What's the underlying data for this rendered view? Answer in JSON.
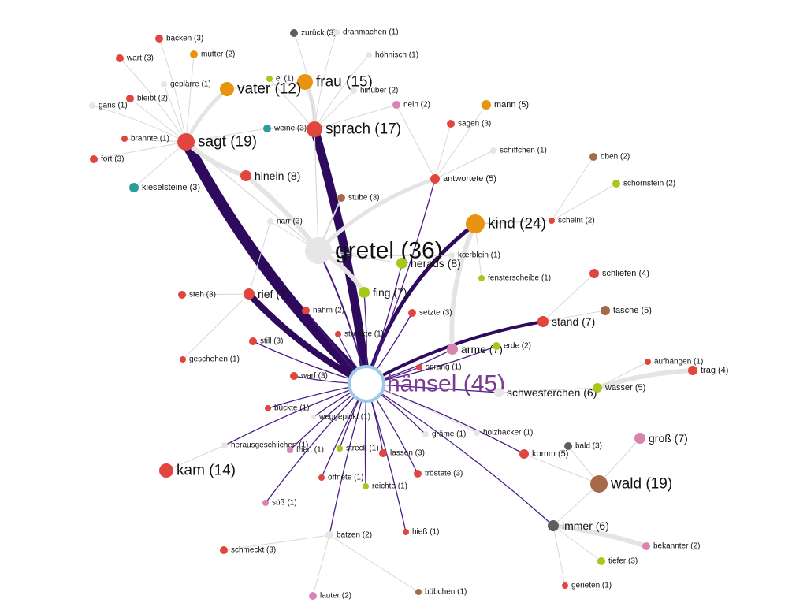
{
  "graph": {
    "width": 1024,
    "height": 779,
    "colors": {
      "red": "#e0463e",
      "orange": "#e89410",
      "lime": "#a6c81a",
      "teal": "#2c9c9c",
      "brown": "#a8684a",
      "darkgray": "#5e5e5e",
      "pink": "#d784b2",
      "lightgray": "#e6e6e6",
      "edge_strong": "#2d0a5e",
      "edge_thin": "#4b1b86",
      "edge_gray": "#e4e4e4",
      "edge_faint": "#d8d8d8",
      "center_ring": "#9cc9e8",
      "center_label": "#7b3b93"
    },
    "nodes": [
      {
        "id": "haensel",
        "label": "hänsel (45)",
        "color": "center_label"
      },
      {
        "id": "gretel",
        "label": "gretel (36)",
        "color": "lightgray"
      },
      {
        "id": "kind",
        "label": "kind (24)",
        "color": "orange"
      },
      {
        "id": "sagt",
        "label": "sagt (19)",
        "color": "red"
      },
      {
        "id": "wald",
        "label": "wald (19)",
        "color": "brown"
      },
      {
        "id": "sprach",
        "label": "sprach (17)",
        "color": "red"
      },
      {
        "id": "frau",
        "label": "frau (15)",
        "color": "orange"
      },
      {
        "id": "kam",
        "label": "kam (14)",
        "color": "red"
      },
      {
        "id": "vater",
        "label": "vater (12)",
        "color": "orange"
      },
      {
        "id": "hinein",
        "label": "hinein (8)",
        "color": "red"
      },
      {
        "id": "heraus",
        "label": "heraus (8)",
        "color": "lime"
      },
      {
        "id": "rief",
        "label": "rief (7)",
        "color": "red"
      },
      {
        "id": "fing",
        "label": "fing (7)",
        "color": "lime"
      },
      {
        "id": "stand",
        "label": "stand (7)",
        "color": "red"
      },
      {
        "id": "arme",
        "label": "arme (7)",
        "color": "pink"
      },
      {
        "id": "gross",
        "label": "groß (7)",
        "color": "pink"
      },
      {
        "id": "schwesterchen",
        "label": "schwesterchen (6)",
        "color": "lightgray"
      },
      {
        "id": "immer",
        "label": "immer (6)",
        "color": "darkgray"
      },
      {
        "id": "antwortete",
        "label": "antwortete (5)",
        "color": "red"
      },
      {
        "id": "mann",
        "label": "mann (5)",
        "color": "orange"
      },
      {
        "id": "tasche",
        "label": "tasche (5)",
        "color": "brown"
      },
      {
        "id": "wasser",
        "label": "wasser (5)",
        "color": "lime"
      },
      {
        "id": "komm",
        "label": "komm (5)",
        "color": "red"
      },
      {
        "id": "schliefen",
        "label": "schliefen (4)",
        "color": "red"
      },
      {
        "id": "trag",
        "label": "trag (4)",
        "color": "red"
      },
      {
        "id": "backen",
        "label": "backen (3)",
        "color": "red"
      },
      {
        "id": "wart",
        "label": "wart (3)",
        "color": "red"
      },
      {
        "id": "zurueck",
        "label": "zurück (3)",
        "color": "darkgray"
      },
      {
        "id": "weine",
        "label": "weine (3)",
        "color": "teal"
      },
      {
        "id": "fort",
        "label": "fort (3)",
        "color": "red"
      },
      {
        "id": "kieselsteine",
        "label": "kieselsteine (3)",
        "color": "teal"
      },
      {
        "id": "sagen",
        "label": "sagen (3)",
        "color": "red"
      },
      {
        "id": "stube",
        "label": "stube (3)",
        "color": "brown"
      },
      {
        "id": "narr",
        "label": "narr (3)",
        "color": "lightgray"
      },
      {
        "id": "steh",
        "label": "steh (3)",
        "color": "red"
      },
      {
        "id": "setzte",
        "label": "setzte (3)",
        "color": "red"
      },
      {
        "id": "still",
        "label": "still (3)",
        "color": "red"
      },
      {
        "id": "warf",
        "label": "warf (3)",
        "color": "red"
      },
      {
        "id": "lassen",
        "label": "lassen (3)",
        "color": "red"
      },
      {
        "id": "troestete",
        "label": "tröstete (3)",
        "color": "red"
      },
      {
        "id": "bald",
        "label": "bald (3)",
        "color": "darkgray"
      },
      {
        "id": "schmeckt",
        "label": "schmeckt (3)",
        "color": "red"
      },
      {
        "id": "tiefer",
        "label": "tiefer (3)",
        "color": "lime"
      },
      {
        "id": "mutter",
        "label": "mutter (2)",
        "color": "orange"
      },
      {
        "id": "bleibt",
        "label": "bleibt (2)",
        "color": "red"
      },
      {
        "id": "hinueber",
        "label": "hinüber (2)",
        "color": "lightgray"
      },
      {
        "id": "nein",
        "label": "nein (2)",
        "color": "pink"
      },
      {
        "id": "oben",
        "label": "oben (2)",
        "color": "brown"
      },
      {
        "id": "schornstein",
        "label": "schornstein (2)",
        "color": "lime"
      },
      {
        "id": "scheint",
        "label": "scheint (2)",
        "color": "red"
      },
      {
        "id": "nahm",
        "label": "nahm (2)",
        "color": "red"
      },
      {
        "id": "erde",
        "label": "erde (2)",
        "color": "lime"
      },
      {
        "id": "batzen",
        "label": "batzen (2)",
        "color": "lightgray"
      },
      {
        "id": "bekannter",
        "label": "bekannter (2)",
        "color": "pink"
      },
      {
        "id": "lauter",
        "label": "lauter (2)",
        "color": "pink"
      },
      {
        "id": "dranmachen",
        "label": "dranmachen (1)",
        "color": "lightgray"
      },
      {
        "id": "hoehnisch",
        "label": "höhnisch (1)",
        "color": "lightgray"
      },
      {
        "id": "geplaerre",
        "label": "geplärre (1)",
        "color": "lightgray"
      },
      {
        "id": "ei",
        "label": "ei (1)",
        "color": "lime"
      },
      {
        "id": "gans",
        "label": "gans (1)",
        "color": "lightgray"
      },
      {
        "id": "brannte",
        "label": "brannte (1)",
        "color": "red"
      },
      {
        "id": "schiffchen",
        "label": "schiffchen (1)",
        "color": "lightgray"
      },
      {
        "id": "koerblein",
        "label": "kœrblein (1)",
        "color": "lightgray"
      },
      {
        "id": "fensterscheibe",
        "label": "fensterscheibe (1)",
        "color": "lime"
      },
      {
        "id": "streckte",
        "label": "streckte (1)",
        "color": "red"
      },
      {
        "id": "geschehen",
        "label": "geschehen (1)",
        "color": "red"
      },
      {
        "id": "sprang",
        "label": "sprang (1)",
        "color": "red"
      },
      {
        "id": "aufhaengen",
        "label": "aufhängen (1)",
        "color": "red"
      },
      {
        "id": "bueckte",
        "label": "bückte (1)",
        "color": "red"
      },
      {
        "id": "weggepickt",
        "label": "weggepickt (1)",
        "color": "lightgray"
      },
      {
        "id": "graeme",
        "label": "gräme (1)",
        "color": "lightgray"
      },
      {
        "id": "holzhacker",
        "label": "holzhacker (1)",
        "color": "lightgray"
      },
      {
        "id": "herausgeschlichen",
        "label": "herausgeschlichen (1)",
        "color": "lightgray"
      },
      {
        "id": "friert",
        "label": "friert (1)",
        "color": "pink"
      },
      {
        "id": "streck",
        "label": "streck (1)",
        "color": "lime"
      },
      {
        "id": "oeffnete",
        "label": "öffnete (1)",
        "color": "red"
      },
      {
        "id": "reichte",
        "label": "reichte (1)",
        "color": "lime"
      },
      {
        "id": "suess",
        "label": "süß (1)",
        "color": "pink"
      },
      {
        "id": "hiess",
        "label": "hieß (1)",
        "color": "red"
      },
      {
        "id": "buebchen",
        "label": "bübchen (1)",
        "color": "brown"
      },
      {
        "id": "gerieten",
        "label": "gerieten (1)",
        "color": "red"
      }
    ]
  }
}
